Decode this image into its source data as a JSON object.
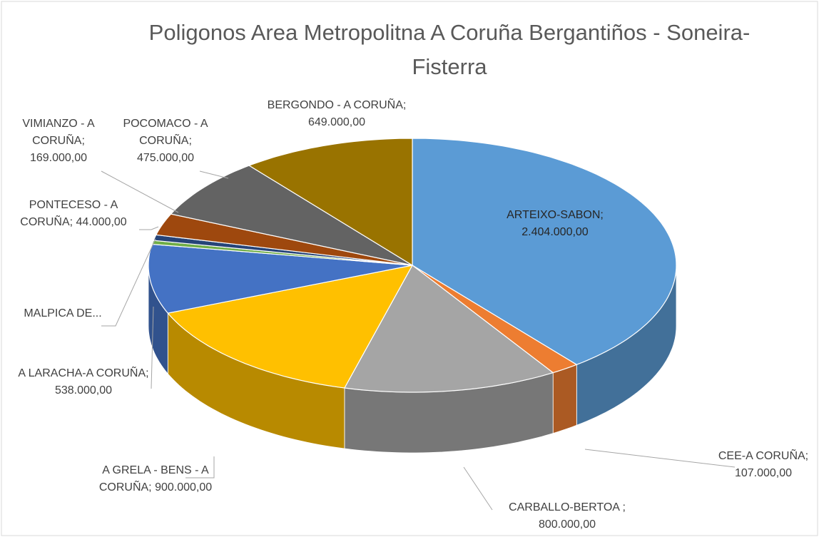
{
  "chart_data": {
    "type": "pie3d",
    "title": "Poligonos  Area Metropolitna A Coruña    Bergantiños - Soneira-Fisterra",
    "categories": [
      "ARTEIXO-SABON;",
      "CEE-A CORUÑA;",
      "CARBALLO-BERTOA ;",
      "A GRELA - BENS - A CORUÑA;",
      "A LARACHA-A CORUÑA;",
      "MALPICA DE...",
      "PONTECESO - A CORUÑA;",
      "VIMIANZO - A CORUÑA;",
      "POCOMACO - A CORUÑA;",
      "BERGONDO - A CORUÑA;"
    ],
    "values": [
      2404000,
      107000,
      800000,
      900000,
      538000,
      30000,
      44000,
      169000,
      475000,
      649000
    ],
    "value_labels": [
      "2.404.000,00",
      "107.000,00",
      "800.000,00",
      "900.000,00",
      "538.000,00",
      null,
      "44.000,00",
      "169.000,00",
      "475.000,00",
      "649.000,00"
    ],
    "colors": [
      "#5b9bd5",
      "#ed7d31",
      "#a5a5a5",
      "#ffc000",
      "#4472c4",
      "#70ad47",
      "#264478",
      "#9e480e",
      "#636363",
      "#997300"
    ]
  }
}
